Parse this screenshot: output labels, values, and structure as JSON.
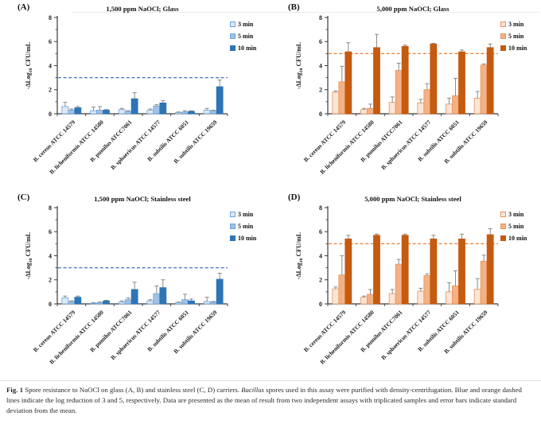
{
  "figure": {
    "caption": {
      "label": "Fig. 1",
      "text_before_italic": " Spore resistance to NaOCl on glass (A, B) and stainless steel (C, D) carriers. ",
      "italic": "Bacillus",
      "text_after_italic": " spores used in this assay were purified with density-centrifugation. Blue and orange dashed lines indicate the log reduction of 3 and 5, respectively. Data are presented as the mean of result from two independent assays with triplicated samples and error bars indicate standard deviation from the mean."
    }
  },
  "axis": {
    "ylabel_pre": "-ΔLog",
    "ylabel_sub": "10",
    "ylabel_post": " CFU/mL",
    "ylim": [
      0,
      8
    ],
    "yticks": [
      0,
      2,
      4,
      6,
      8
    ],
    "yminor": [
      1,
      3,
      5,
      7
    ]
  },
  "palettes": {
    "blue": {
      "fills": [
        "#dde9f6",
        "#9dc3e6",
        "#2e75b6"
      ],
      "strokes": [
        "#6fa3d8",
        "#6fa3d8",
        "#2e75b6"
      ],
      "dash": "#4472c4"
    },
    "orange": {
      "fills": [
        "#fbe5d6",
        "#f4b183",
        "#c55a11"
      ],
      "strokes": [
        "#e8935c",
        "#e8935c",
        "#c55a11"
      ],
      "dash": "#ed7d31"
    }
  },
  "chart_data": [
    {
      "type": "bar",
      "panel_label": "(A)",
      "title": "1,500 ppm NaOCl; Glass",
      "palette": "blue",
      "reference_line": 3,
      "ylabel": "-ΔLog10 CFU/mL",
      "ylim": [
        0,
        8
      ],
      "legend_position": "right-top",
      "categories": [
        "B. cereus ATCC 14579",
        "B. licheniformis ATCC 14580",
        "B. pumilus ATCC7061",
        "B. sphaericus ATCC 14577",
        "B. subtilis ATCC 6051",
        "B. subtilis ATCC 19659"
      ],
      "series": [
        {
          "name": "3 min",
          "values": [
            0.6,
            0.25,
            0.35,
            0.3,
            0.1,
            0.3
          ],
          "errors": [
            0.35,
            0.3,
            0.1,
            0.1,
            0.05,
            0.15
          ]
        },
        {
          "name": "5 min",
          "values": [
            0.3,
            0.3,
            0.2,
            0.65,
            0.15,
            0.25
          ],
          "errors": [
            0.1,
            0.3,
            0.05,
            0.1,
            0.1,
            0.05
          ]
        },
        {
          "name": "10 min",
          "values": [
            0.5,
            0.3,
            1.25,
            0.9,
            0.2,
            2.25
          ],
          "errors": [
            0.1,
            0.05,
            0.5,
            0.2,
            0.05,
            0.55
          ]
        }
      ]
    },
    {
      "type": "bar",
      "panel_label": "(B)",
      "title": "5,000 ppm NaOCl; Glass",
      "palette": "orange",
      "reference_line": 5,
      "ylabel": "-ΔLog10 CFU/mL",
      "ylim": [
        0,
        8
      ],
      "legend_position": "right-top",
      "categories": [
        "B. cereus ATCC 14579",
        "B. licheniformis ATCC 14580",
        "B. pumilus ATCC7061",
        "B. sphaericus ATCC 14577",
        "B. subtilis ATCC 6051",
        "B. subtilis ATCC 19659"
      ],
      "series": [
        {
          "name": "3 min",
          "values": [
            1.8,
            0.35,
            0.95,
            0.9,
            0.8,
            1.3
          ],
          "errors": [
            0.1,
            0.1,
            0.45,
            0.3,
            0.5,
            0.55
          ]
        },
        {
          "name": "5 min",
          "values": [
            2.65,
            0.45,
            3.6,
            2.0,
            1.5,
            4.05
          ],
          "errors": [
            1.3,
            0.35,
            0.6,
            0.5,
            1.45,
            0.1
          ]
        },
        {
          "name": "10 min",
          "values": [
            5.15,
            5.5,
            5.6,
            5.8,
            5.15,
            5.5
          ],
          "errors": [
            0.75,
            1.1,
            0.1,
            0.05,
            0.15,
            0.3
          ]
        }
      ]
    },
    {
      "type": "bar",
      "panel_label": "(C)",
      "title": "1,500 ppm NaOCl; Stainless steel",
      "palette": "blue",
      "reference_line": 3,
      "ylabel": "-ΔLog10 CFU/mL",
      "ylim": [
        0,
        8
      ],
      "legend_position": "right-top",
      "categories": [
        "B. cereus ATCC 14579",
        "B. licheniformis ATCC 14580",
        "B. pumilus ATCC7061",
        "B. sphaericus ATCC 14577",
        "B. subtilis ATCC 6051",
        "B. subtilis ATCC 19659"
      ],
      "series": [
        {
          "name": "3 min",
          "values": [
            0.5,
            0.05,
            0.15,
            0.25,
            0.1,
            0.2
          ],
          "errors": [
            0.15,
            0.05,
            0.1,
            0.1,
            0.05,
            0.35
          ]
        },
        {
          "name": "5 min",
          "values": [
            0.2,
            0.1,
            0.35,
            0.85,
            0.35,
            0.15
          ],
          "errors": [
            0.05,
            0.05,
            0.15,
            0.65,
            0.45,
            0.05
          ]
        },
        {
          "name": "10 min",
          "values": [
            0.55,
            0.25,
            1.2,
            1.35,
            0.25,
            2.05
          ],
          "errors": [
            0.1,
            0.05,
            0.6,
            0.65,
            0.15,
            0.5
          ]
        }
      ]
    },
    {
      "type": "bar",
      "panel_label": "(D)",
      "title": "5,000 ppm NaOCl; Stainless steel",
      "palette": "orange",
      "reference_line": 5,
      "ylabel": "-ΔLog10 CFU/mL",
      "ylim": [
        0,
        8
      ],
      "legend_position": "right-top",
      "categories": [
        "B. cereus ATCC 14579",
        "B. licheniformis ATCC 14580",
        "B. pumilus ATCC7061",
        "B. sphaericus ATCC 14577",
        "B. subtilis ATCC 6051",
        "B. subtilis ATCC 19659"
      ],
      "series": [
        {
          "name": "3 min",
          "values": [
            1.25,
            0.55,
            0.85,
            1.05,
            1.0,
            1.2
          ],
          "errors": [
            0.15,
            0.1,
            0.35,
            0.25,
            0.75,
            0.9
          ]
        },
        {
          "name": "5 min",
          "values": [
            2.4,
            0.8,
            3.3,
            2.35,
            1.5,
            3.55
          ],
          "errors": [
            1.6,
            0.4,
            0.4,
            0.15,
            1.25,
            0.5
          ]
        },
        {
          "name": "10 min",
          "values": [
            5.4,
            5.7,
            5.7,
            5.4,
            5.4,
            5.75
          ],
          "errors": [
            0.3,
            0.1,
            0.1,
            0.3,
            0.4,
            0.5
          ]
        }
      ]
    }
  ]
}
